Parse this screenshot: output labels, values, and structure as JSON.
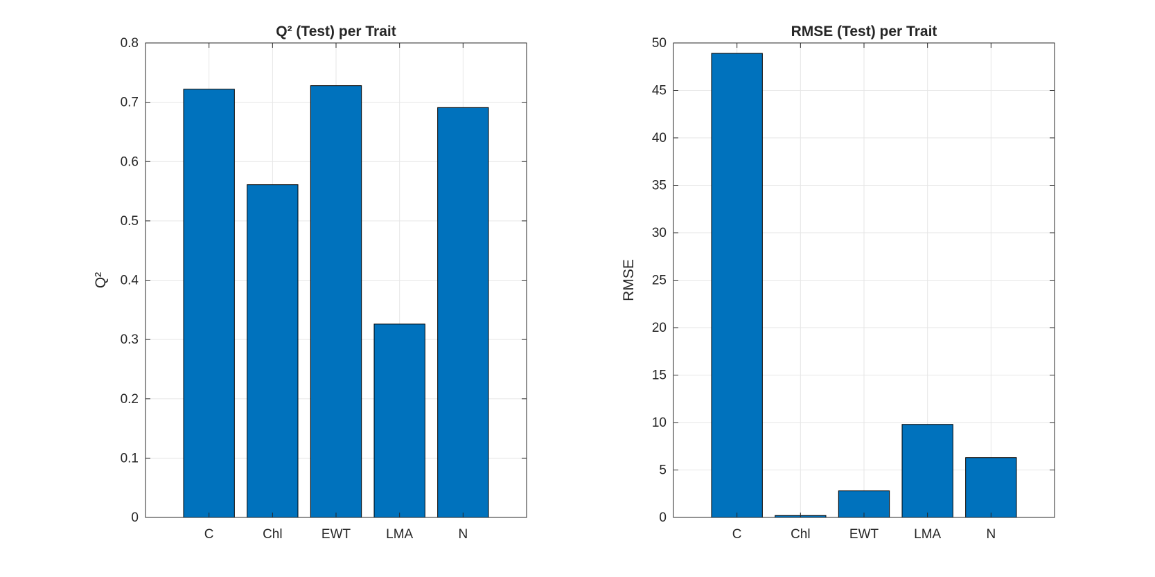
{
  "colors": {
    "bar": "#0072bd",
    "grid": "#e6e6e6",
    "axis": "#262626",
    "background": "#ffffff"
  },
  "chart_data": [
    {
      "type": "bar",
      "title": "Q² (Test) per Trait",
      "xlabel": "",
      "ylabel": "Q²",
      "categories": [
        "C",
        "Chl",
        "EWT",
        "LMA",
        "N"
      ],
      "values": [
        0.722,
        0.561,
        0.728,
        0.326,
        0.691
      ],
      "ylim": [
        0,
        0.8
      ],
      "yticks": [
        0,
        0.1,
        0.2,
        0.3,
        0.4,
        0.5,
        0.6,
        0.7,
        0.8
      ],
      "ytick_labels": [
        "0",
        "0.1",
        "0.2",
        "0.3",
        "0.4",
        "0.5",
        "0.6",
        "0.7",
        "0.8"
      ],
      "grid": true
    },
    {
      "type": "bar",
      "title": "RMSE (Test) per Trait",
      "xlabel": "",
      "ylabel": "RMSE",
      "categories": [
        "C",
        "Chl",
        "EWT",
        "LMA",
        "N"
      ],
      "values": [
        48.9,
        0.2,
        2.8,
        9.8,
        6.3
      ],
      "ylim": [
        0,
        50
      ],
      "yticks": [
        0,
        5,
        10,
        15,
        20,
        25,
        30,
        35,
        40,
        45,
        50
      ],
      "ytick_labels": [
        "0",
        "5",
        "10",
        "15",
        "20",
        "25",
        "30",
        "35",
        "40",
        "45",
        "50"
      ],
      "grid": true
    }
  ]
}
